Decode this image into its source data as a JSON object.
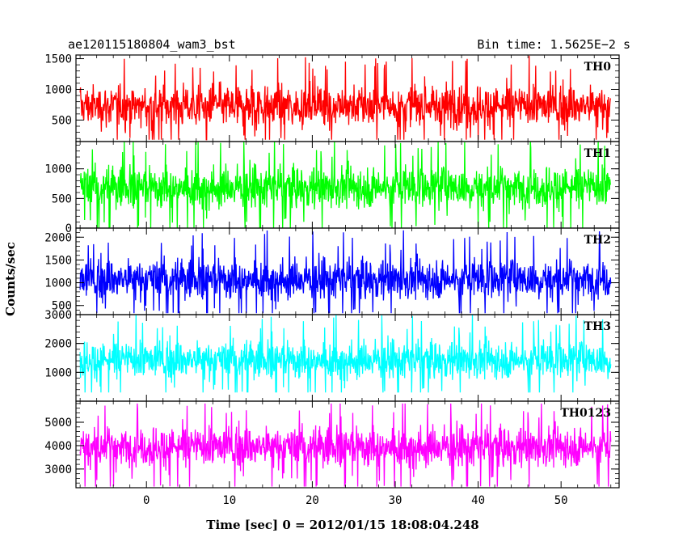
{
  "header": {
    "left_title": "ae120115180804_wam3_bst",
    "right_title": "Bin time: 1.5625E−2 s"
  },
  "chart_data": {
    "type": "line",
    "xlabel": "Time [sec] 0 = 2012/01/15 18:08:04.248",
    "ylabel": "Counts/sec",
    "xlim": [
      -8.5,
      57
    ],
    "x_ticks": [
      0,
      10,
      20,
      30,
      40,
      50
    ],
    "x_data_range": [
      -8,
      56
    ],
    "bin_time": 0.015625,
    "panels": [
      {
        "name": "TH0",
        "color": "#ff0000",
        "ylim": [
          150,
          1560
        ],
        "y_ticks": [
          500,
          1000,
          1500
        ],
        "y_tick_labels": [
          "500",
          "1000",
          "1500"
        ],
        "mean": 730,
        "min": 180,
        "max": 1550
      },
      {
        "name": "TH1",
        "color": "#00ff00",
        "ylim": [
          0,
          1460
        ],
        "y_ticks": [
          0,
          500,
          1000
        ],
        "y_tick_labels": [
          "0",
          "500",
          "1000"
        ],
        "mean": 690,
        "min": 0,
        "max": 1460
      },
      {
        "name": "TH2",
        "color": "#0000ff",
        "ylim": [
          300,
          2200
        ],
        "y_ticks": [
          500,
          1000,
          1500,
          2000
        ],
        "y_tick_labels": [
          "500",
          "1000",
          "1500",
          "2000"
        ],
        "mean": 1080,
        "min": 330,
        "max": 2150
      },
      {
        "name": "TH3",
        "color": "#00ffff",
        "ylim": [
          0,
          3000
        ],
        "y_ticks": [
          1000,
          2000,
          3000
        ],
        "y_tick_labels": [
          "1000",
          "2000",
          "3000"
        ],
        "mean": 1430,
        "min": 300,
        "max": 3000
      },
      {
        "name": "TH0123",
        "color": "#ff00ff",
        "ylim": [
          2200,
          5900
        ],
        "y_ticks": [
          3000,
          4000,
          5000
        ],
        "y_tick_labels": [
          "3000",
          "4000",
          "5000"
        ],
        "mean": 3950,
        "min": 2250,
        "max": 5800
      }
    ]
  }
}
